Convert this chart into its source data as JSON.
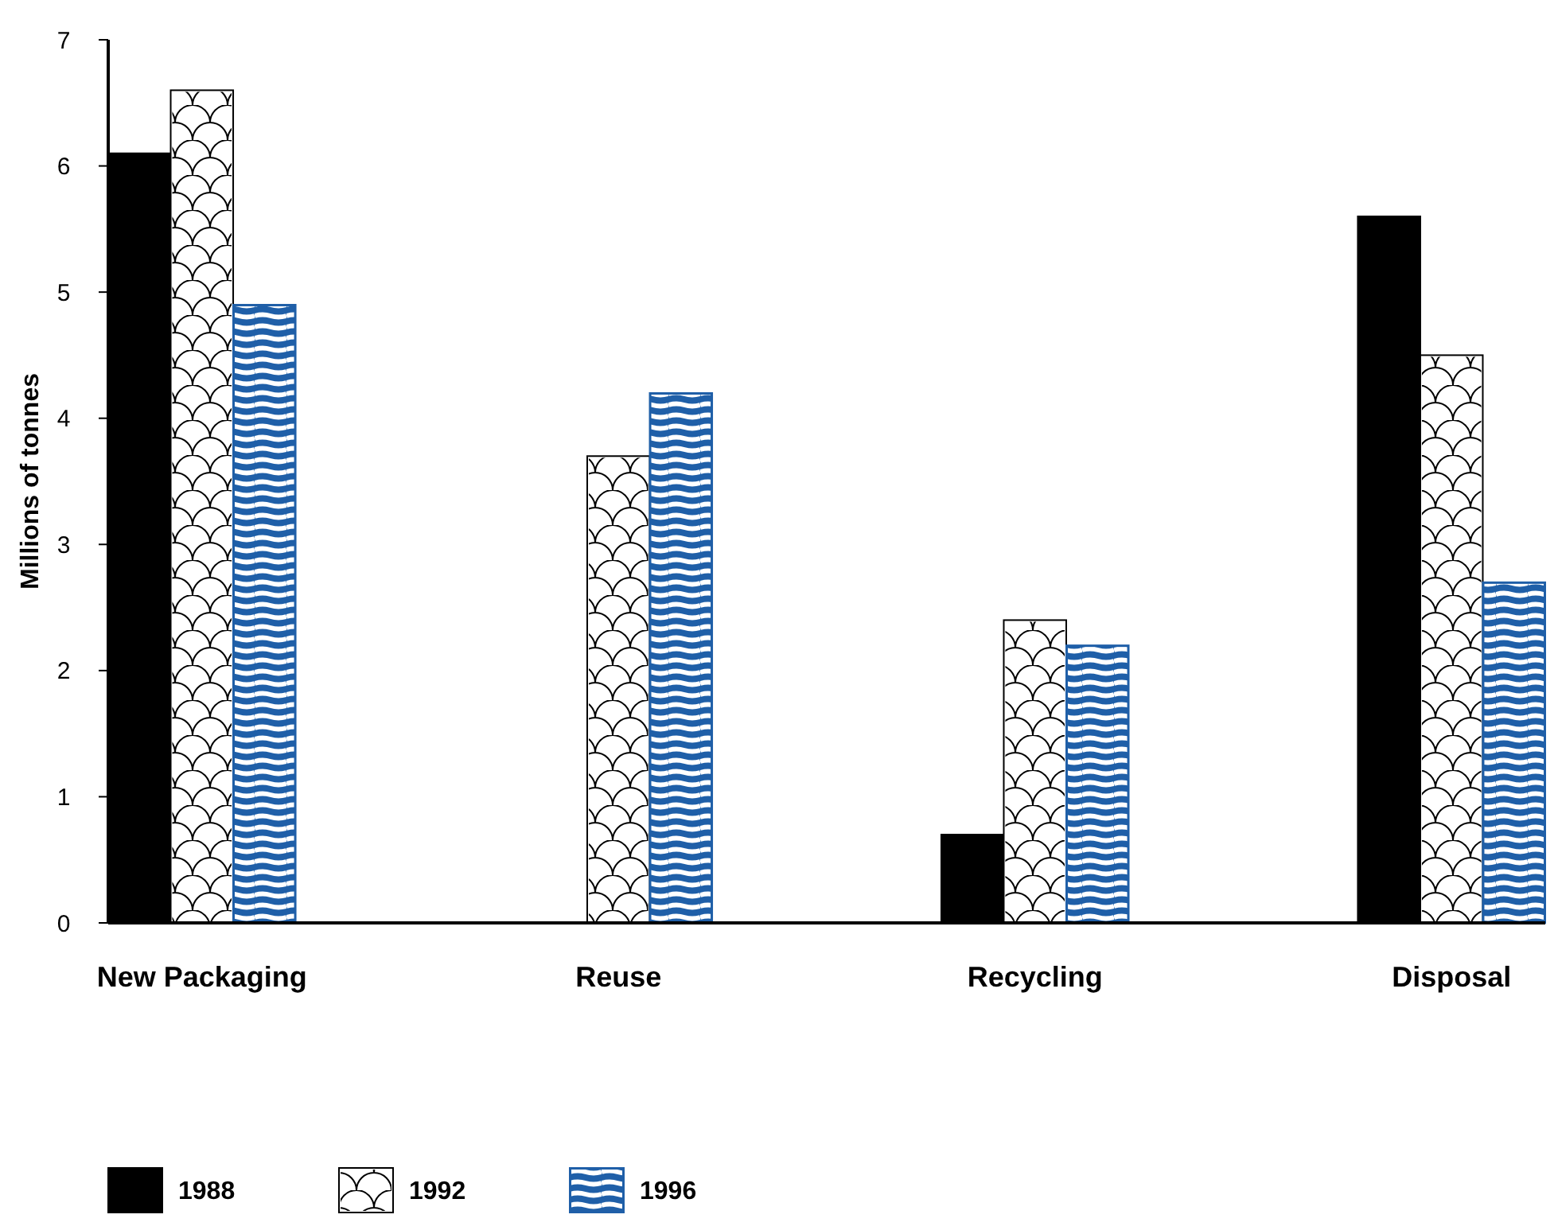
{
  "chart_data": {
    "type": "bar",
    "ylabel": "Millions of tonnes",
    "categories": [
      "New Packaging",
      "Reuse",
      "Recycling",
      "Disposal"
    ],
    "series": [
      {
        "name": "1988",
        "color": "#000000",
        "values": [
          6.1,
          0,
          0.7,
          5.6
        ]
      },
      {
        "name": "1992",
        "color": "#ffffff",
        "values": [
          6.6,
          3.7,
          2.4,
          4.5
        ]
      },
      {
        "name": "1996",
        "color": "#1f5fa8",
        "values": [
          4.9,
          4.2,
          2.2,
          2.7
        ]
      }
    ],
    "ylim": [
      0,
      7
    ],
    "yticks": [
      0,
      1,
      2,
      3,
      4,
      5,
      6,
      7
    ],
    "grid": false,
    "legend": "bottom left"
  }
}
